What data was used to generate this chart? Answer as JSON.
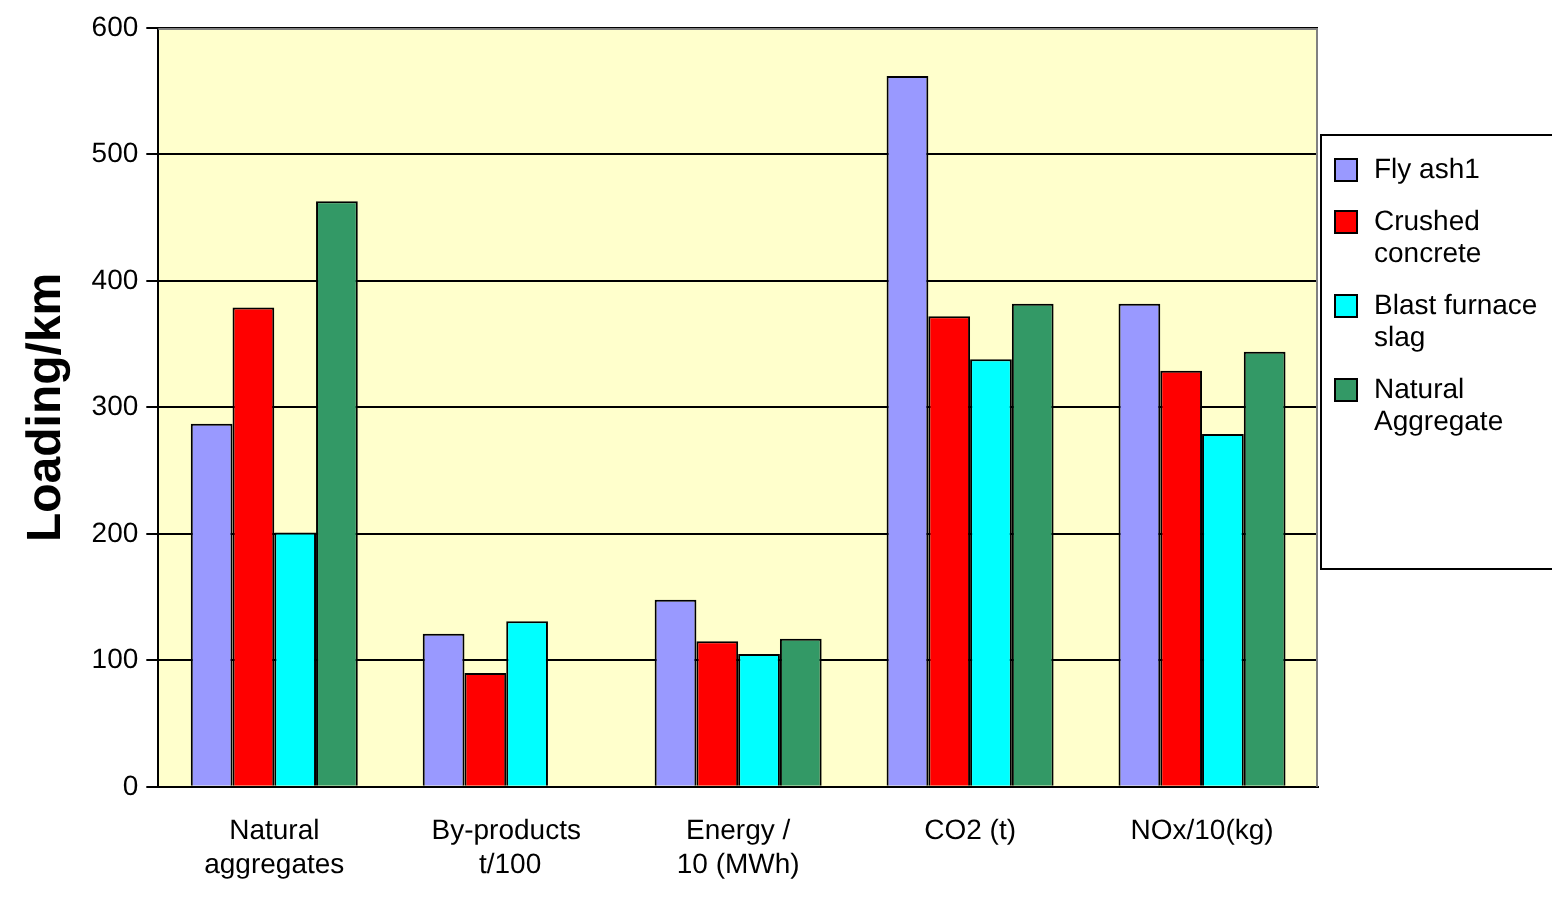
{
  "chart_data": {
    "type": "bar",
    "ylabel": "Loading/km",
    "categories": [
      "Natural\naggregates",
      "By-products\n t/100",
      "Energy /\n10 (MWh)",
      "CO2 (t)",
      "NOx/10(kg)"
    ],
    "series": [
      {
        "name": "Fly ash1",
        "color": "#9999ff",
        "values": [
          287,
          121,
          148,
          562,
          382
        ]
      },
      {
        "name": "Crushed concrete",
        "color": "#ff0000",
        "values": [
          379,
          90,
          115,
          372,
          329
        ]
      },
      {
        "name": "Blast furnace slag",
        "color": "#00ffff",
        "values": [
          201,
          131,
          105,
          338,
          279
        ]
      },
      {
        "name": "Natural Aggregate",
        "color": "#339966",
        "values": [
          463,
          null,
          117,
          382,
          344
        ]
      }
    ],
    "ylim": [
      0,
      600
    ],
    "yticks": [
      0,
      100,
      200,
      300,
      400,
      500,
      600
    ],
    "grid": "y",
    "legend": "right"
  }
}
